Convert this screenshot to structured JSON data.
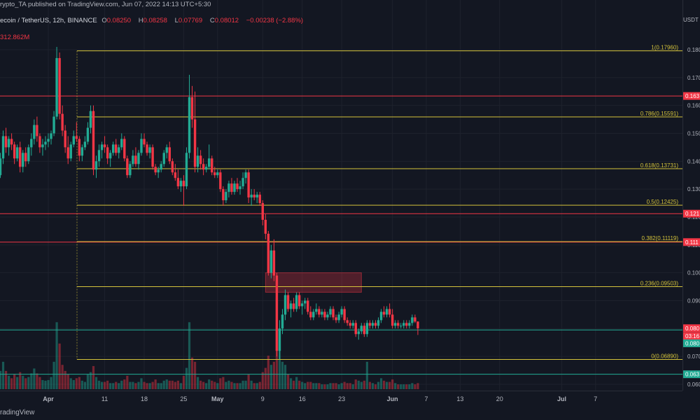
{
  "header": {
    "publish_info": "rypto_TA published on TradingView.com, Jun 07, 2022 14:13 UTC+5:30",
    "symbol": "ecoin / TetherUS, 12h, BINANCE",
    "ohlc": {
      "o_label": "O",
      "o": "0.08250",
      "h_label": "H",
      "h": "0.08258",
      "l_label": "L",
      "l": "0.07769",
      "c_label": "C",
      "c": "0.08012",
      "change": "−0.00238 (−2.88%)"
    },
    "volume": "312.862M",
    "currency": "USDT"
  },
  "footer": {
    "brand": "radingView"
  },
  "price_axis": {
    "ticks": [
      "0.180",
      "0.170",
      "0.160",
      "0.150",
      "0.140",
      "0.130",
      "0.120",
      "0.110",
      "0.100",
      "0.090",
      "0.080",
      "0.070",
      "0.060"
    ],
    "tags": [
      {
        "text": "0.163",
        "price": 0.1634,
        "color": "#f23645"
      },
      {
        "text": "0.121",
        "price": 0.1212,
        "color": "#f23645"
      },
      {
        "text": "0.111",
        "price": 0.111,
        "color": "#f23645"
      },
      {
        "text": "0.080",
        "price": 0.08012,
        "color": "#f23645"
      },
      {
        "text": "03:16",
        "price": 0.0773,
        "color": "#f23645"
      },
      {
        "text": "0.080",
        "price": 0.0747,
        "color": "#22ab94"
      },
      {
        "text": "0.063",
        "price": 0.0636,
        "color": "#22ab94"
      }
    ]
  },
  "time_axis": [
    {
      "label": "Apr",
      "day": 0,
      "bold": true
    },
    {
      "label": "11",
      "day": 10
    },
    {
      "label": "18",
      "day": 17
    },
    {
      "label": "25",
      "day": 24
    },
    {
      "label": "May",
      "day": 30,
      "bold": true
    },
    {
      "label": "9",
      "day": 38
    },
    {
      "label": "16",
      "day": 45
    },
    {
      "label": "23",
      "day": 52
    },
    {
      "label": "Jun",
      "day": 61,
      "bold": true
    },
    {
      "label": "7",
      "day": 67
    },
    {
      "label": "13",
      "day": 73
    },
    {
      "label": "20",
      "day": 80
    },
    {
      "label": "Jul",
      "day": 91,
      "bold": true
    },
    {
      "label": "7",
      "day": 97
    }
  ],
  "fibonacci": [
    {
      "label": "1(0.17960)",
      "price": 0.1796
    },
    {
      "label": "0.786(0.15591)",
      "price": 0.15591
    },
    {
      "label": "0.618(0.13731)",
      "price": 0.13731
    },
    {
      "label": "0.5(0.12425)",
      "price": 0.12425
    },
    {
      "label": "0.382(0.11119)",
      "price": 0.11119
    },
    {
      "label": "0.236(0.09503)",
      "price": 0.09503
    },
    {
      "label": "0(0.06890)",
      "price": 0.0689
    }
  ],
  "horizontal_lines": [
    {
      "price": 0.1634,
      "color": "#f23645"
    },
    {
      "price": 0.1212,
      "color": "#f23645"
    },
    {
      "price": 0.111,
      "color": "#f23645"
    },
    {
      "price": 0.0795,
      "color": "#22ab94"
    },
    {
      "price": 0.0636,
      "color": "#22ab94"
    }
  ],
  "supply_zone": {
    "price_top": 0.1,
    "price_bottom": 0.093,
    "start_day": 38.5,
    "end_day": 55.5,
    "color": "#f23645"
  },
  "colors": {
    "up": "#22ab94",
    "down": "#f23645",
    "fib": "#d4c33b",
    "grid": "#1e222d",
    "axis_text": "#b2b5be"
  },
  "chart_data": {
    "type": "candlestick",
    "interval": "12h",
    "price_axis_unit": "USDT",
    "ylim": [
      0.058,
      0.186
    ],
    "x_unit": "days since Apr 1, 2022",
    "candles": [
      [
        -10,
        0.137,
        0.14,
        0.133,
        0.136,
        20
      ],
      [
        -9.5,
        0.136,
        0.139,
        0.13,
        0.132,
        18
      ],
      [
        -9,
        0.132,
        0.137,
        0.129,
        0.135,
        22
      ],
      [
        -8.5,
        0.135,
        0.143,
        0.134,
        0.141,
        30
      ],
      [
        -8,
        0.141,
        0.151,
        0.139,
        0.149,
        45
      ],
      [
        -7.5,
        0.149,
        0.152,
        0.143,
        0.145,
        30
      ],
      [
        -7,
        0.145,
        0.149,
        0.142,
        0.148,
        22
      ],
      [
        -6.5,
        0.148,
        0.15,
        0.144,
        0.146,
        18
      ],
      [
        -6,
        0.146,
        0.147,
        0.139,
        0.141,
        25
      ],
      [
        -5.5,
        0.141,
        0.146,
        0.14,
        0.145,
        20
      ],
      [
        -5,
        0.145,
        0.147,
        0.136,
        0.138,
        28
      ],
      [
        -4.5,
        0.138,
        0.144,
        0.136,
        0.143,
        22
      ],
      [
        -4,
        0.143,
        0.145,
        0.138,
        0.14,
        18
      ],
      [
        -3.5,
        0.14,
        0.146,
        0.139,
        0.145,
        20
      ],
      [
        -3,
        0.145,
        0.15,
        0.142,
        0.148,
        26
      ],
      [
        -2.5,
        0.148,
        0.155,
        0.146,
        0.153,
        34
      ],
      [
        -2,
        0.153,
        0.156,
        0.147,
        0.149,
        26
      ],
      [
        -1.5,
        0.149,
        0.15,
        0.143,
        0.145,
        20
      ],
      [
        -1,
        0.145,
        0.148,
        0.142,
        0.146,
        15
      ],
      [
        -0.5,
        0.146,
        0.149,
        0.144,
        0.147,
        14
      ],
      [
        0,
        0.147,
        0.15,
        0.145,
        0.148,
        15
      ],
      [
        0.5,
        0.148,
        0.151,
        0.146,
        0.15,
        20
      ],
      [
        1,
        0.15,
        0.158,
        0.149,
        0.156,
        45
      ],
      [
        1.5,
        0.156,
        0.181,
        0.155,
        0.177,
        110
      ],
      [
        2,
        0.177,
        0.179,
        0.155,
        0.157,
        75
      ],
      [
        2.5,
        0.157,
        0.16,
        0.149,
        0.151,
        40
      ],
      [
        3,
        0.151,
        0.153,
        0.143,
        0.145,
        30
      ],
      [
        3.5,
        0.145,
        0.149,
        0.139,
        0.141,
        25
      ],
      [
        4,
        0.141,
        0.147,
        0.14,
        0.146,
        18
      ],
      [
        4.5,
        0.146,
        0.151,
        0.145,
        0.149,
        15
      ],
      [
        5,
        0.149,
        0.154,
        0.147,
        0.148,
        18
      ],
      [
        5.5,
        0.148,
        0.149,
        0.14,
        0.142,
        20
      ],
      [
        6,
        0.142,
        0.146,
        0.14,
        0.145,
        14
      ],
      [
        6.5,
        0.145,
        0.149,
        0.144,
        0.147,
        12
      ],
      [
        7,
        0.147,
        0.154,
        0.146,
        0.152,
        24
      ],
      [
        7.5,
        0.152,
        0.16,
        0.15,
        0.158,
        28
      ],
      [
        8,
        0.158,
        0.16,
        0.135,
        0.137,
        38
      ],
      [
        8.5,
        0.137,
        0.142,
        0.134,
        0.14,
        20
      ],
      [
        9,
        0.14,
        0.146,
        0.138,
        0.144,
        14
      ],
      [
        9.5,
        0.144,
        0.147,
        0.141,
        0.146,
        12
      ],
      [
        10,
        0.146,
        0.149,
        0.143,
        0.145,
        12
      ],
      [
        10.5,
        0.145,
        0.146,
        0.139,
        0.141,
        14
      ],
      [
        11,
        0.141,
        0.144,
        0.138,
        0.143,
        10
      ],
      [
        11.5,
        0.143,
        0.147,
        0.142,
        0.146,
        10
      ],
      [
        12,
        0.146,
        0.148,
        0.142,
        0.143,
        12
      ],
      [
        12.5,
        0.143,
        0.146,
        0.141,
        0.145,
        10
      ],
      [
        13,
        0.145,
        0.15,
        0.144,
        0.148,
        14
      ],
      [
        13.5,
        0.148,
        0.149,
        0.14,
        0.141,
        16
      ],
      [
        14,
        0.141,
        0.142,
        0.134,
        0.135,
        22
      ],
      [
        14.5,
        0.135,
        0.14,
        0.134,
        0.139,
        12
      ],
      [
        15,
        0.139,
        0.144,
        0.138,
        0.142,
        12
      ],
      [
        15.5,
        0.142,
        0.145,
        0.138,
        0.139,
        10
      ],
      [
        16,
        0.139,
        0.144,
        0.137,
        0.143,
        12
      ],
      [
        16.5,
        0.143,
        0.15,
        0.142,
        0.148,
        18
      ],
      [
        17,
        0.148,
        0.15,
        0.145,
        0.146,
        12
      ],
      [
        17.5,
        0.146,
        0.147,
        0.142,
        0.143,
        10
      ],
      [
        18,
        0.143,
        0.146,
        0.141,
        0.145,
        10
      ],
      [
        18.5,
        0.145,
        0.146,
        0.137,
        0.138,
        12
      ],
      [
        19,
        0.138,
        0.139,
        0.135,
        0.136,
        16
      ],
      [
        19.5,
        0.136,
        0.138,
        0.134,
        0.137,
        10
      ],
      [
        20,
        0.137,
        0.14,
        0.136,
        0.139,
        10
      ],
      [
        20.5,
        0.139,
        0.144,
        0.138,
        0.143,
        14
      ],
      [
        21,
        0.143,
        0.146,
        0.141,
        0.145,
        16
      ],
      [
        21.5,
        0.145,
        0.147,
        0.139,
        0.14,
        14
      ],
      [
        22,
        0.14,
        0.141,
        0.135,
        0.136,
        14
      ],
      [
        22.5,
        0.136,
        0.139,
        0.133,
        0.134,
        12
      ],
      [
        23,
        0.134,
        0.137,
        0.13,
        0.131,
        14
      ],
      [
        23.5,
        0.131,
        0.134,
        0.129,
        0.133,
        10
      ],
      [
        24,
        0.133,
        0.135,
        0.124,
        0.131,
        22
      ],
      [
        24.5,
        0.131,
        0.145,
        0.13,
        0.143,
        35
      ],
      [
        25,
        0.143,
        0.171,
        0.141,
        0.163,
        110
      ],
      [
        25.5,
        0.163,
        0.167,
        0.152,
        0.155,
        52
      ],
      [
        26,
        0.155,
        0.165,
        0.136,
        0.138,
        45
      ],
      [
        26.5,
        0.138,
        0.145,
        0.136,
        0.142,
        20
      ],
      [
        27,
        0.142,
        0.144,
        0.137,
        0.139,
        14
      ],
      [
        27.5,
        0.139,
        0.141,
        0.135,
        0.137,
        12
      ],
      [
        28,
        0.137,
        0.139,
        0.136,
        0.138,
        10
      ],
      [
        28.5,
        0.138,
        0.146,
        0.137,
        0.141,
        16
      ],
      [
        29,
        0.141,
        0.142,
        0.135,
        0.136,
        14
      ],
      [
        29.5,
        0.136,
        0.138,
        0.134,
        0.135,
        12
      ],
      [
        30,
        0.135,
        0.137,
        0.134,
        0.136,
        10
      ],
      [
        30.5,
        0.136,
        0.137,
        0.129,
        0.13,
        18
      ],
      [
        31,
        0.13,
        0.131,
        0.124,
        0.126,
        20
      ],
      [
        31.5,
        0.126,
        0.13,
        0.125,
        0.129,
        12
      ],
      [
        32,
        0.129,
        0.133,
        0.127,
        0.132,
        14
      ],
      [
        32.5,
        0.132,
        0.134,
        0.128,
        0.129,
        12
      ],
      [
        33,
        0.129,
        0.133,
        0.128,
        0.132,
        10
      ],
      [
        33.5,
        0.132,
        0.134,
        0.129,
        0.13,
        10
      ],
      [
        34,
        0.13,
        0.133,
        0.128,
        0.131,
        10
      ],
      [
        34.5,
        0.131,
        0.136,
        0.13,
        0.134,
        14
      ],
      [
        35,
        0.134,
        0.137,
        0.132,
        0.136,
        14
      ],
      [
        35.5,
        0.136,
        0.137,
        0.125,
        0.127,
        24
      ],
      [
        36,
        0.127,
        0.13,
        0.124,
        0.128,
        14
      ],
      [
        36.5,
        0.128,
        0.13,
        0.126,
        0.127,
        10
      ],
      [
        37,
        0.127,
        0.129,
        0.125,
        0.128,
        10
      ],
      [
        37.5,
        0.128,
        0.129,
        0.124,
        0.125,
        12
      ],
      [
        38,
        0.125,
        0.126,
        0.117,
        0.119,
        28
      ],
      [
        38.5,
        0.119,
        0.121,
        0.112,
        0.114,
        35
      ],
      [
        39,
        0.114,
        0.115,
        0.099,
        0.1,
        55
      ],
      [
        39.5,
        0.1,
        0.11,
        0.098,
        0.108,
        40
      ],
      [
        40,
        0.108,
        0.112,
        0.097,
        0.099,
        45
      ],
      [
        40.5,
        0.099,
        0.1,
        0.07,
        0.072,
        150
      ],
      [
        41,
        0.072,
        0.083,
        0.069,
        0.08,
        80
      ],
      [
        41.5,
        0.08,
        0.087,
        0.078,
        0.085,
        45
      ],
      [
        42,
        0.085,
        0.094,
        0.083,
        0.092,
        40
      ],
      [
        42.5,
        0.092,
        0.093,
        0.086,
        0.087,
        25
      ],
      [
        43,
        0.087,
        0.09,
        0.084,
        0.089,
        18
      ],
      [
        43.5,
        0.089,
        0.091,
        0.086,
        0.087,
        14
      ],
      [
        44,
        0.087,
        0.093,
        0.086,
        0.092,
        20
      ],
      [
        44.5,
        0.092,
        0.093,
        0.087,
        0.088,
        14
      ],
      [
        45,
        0.088,
        0.09,
        0.085,
        0.089,
        12
      ],
      [
        45.5,
        0.089,
        0.091,
        0.087,
        0.09,
        10
      ],
      [
        46,
        0.09,
        0.091,
        0.085,
        0.086,
        12
      ],
      [
        46.5,
        0.086,
        0.088,
        0.083,
        0.084,
        12
      ],
      [
        47,
        0.084,
        0.087,
        0.083,
        0.086,
        10
      ],
      [
        47.5,
        0.086,
        0.089,
        0.085,
        0.087,
        10
      ],
      [
        48,
        0.087,
        0.088,
        0.084,
        0.085,
        10
      ],
      [
        48.5,
        0.085,
        0.087,
        0.084,
        0.086,
        8
      ],
      [
        49,
        0.086,
        0.087,
        0.083,
        0.084,
        8
      ],
      [
        49.5,
        0.084,
        0.086,
        0.083,
        0.085,
        8
      ],
      [
        50,
        0.085,
        0.088,
        0.084,
        0.087,
        10
      ],
      [
        50.5,
        0.087,
        0.088,
        0.083,
        0.084,
        10
      ],
      [
        51,
        0.084,
        0.085,
        0.082,
        0.083,
        10
      ],
      [
        51.5,
        0.083,
        0.086,
        0.082,
        0.085,
        8
      ],
      [
        52,
        0.085,
        0.088,
        0.084,
        0.087,
        10
      ],
      [
        52.5,
        0.087,
        0.088,
        0.082,
        0.083,
        12
      ],
      [
        53,
        0.083,
        0.084,
        0.081,
        0.082,
        10
      ],
      [
        53.5,
        0.082,
        0.083,
        0.08,
        0.081,
        10
      ],
      [
        54,
        0.081,
        0.083,
        0.08,
        0.082,
        8
      ],
      [
        54.5,
        0.082,
        0.083,
        0.077,
        0.078,
        16
      ],
      [
        55,
        0.078,
        0.08,
        0.076,
        0.079,
        14
      ],
      [
        55.5,
        0.079,
        0.082,
        0.078,
        0.081,
        12
      ],
      [
        56,
        0.081,
        0.082,
        0.077,
        0.078,
        14
      ],
      [
        56.5,
        0.078,
        0.083,
        0.077,
        0.082,
        45
      ],
      [
        57,
        0.082,
        0.083,
        0.08,
        0.081,
        12
      ],
      [
        57.5,
        0.081,
        0.083,
        0.08,
        0.082,
        10
      ],
      [
        58,
        0.082,
        0.083,
        0.08,
        0.081,
        8
      ],
      [
        58.5,
        0.081,
        0.084,
        0.08,
        0.083,
        12
      ],
      [
        59,
        0.083,
        0.087,
        0.082,
        0.086,
        18
      ],
      [
        59.5,
        0.086,
        0.088,
        0.084,
        0.085,
        14
      ],
      [
        60,
        0.085,
        0.088,
        0.084,
        0.087,
        12
      ],
      [
        60.5,
        0.087,
        0.089,
        0.084,
        0.085,
        12
      ],
      [
        61,
        0.085,
        0.087,
        0.08,
        0.081,
        16
      ],
      [
        61.5,
        0.081,
        0.083,
        0.08,
        0.082,
        10
      ],
      [
        62,
        0.082,
        0.083,
        0.08,
        0.081,
        8
      ],
      [
        62.5,
        0.081,
        0.082,
        0.08,
        0.081,
        8
      ],
      [
        63,
        0.081,
        0.083,
        0.08,
        0.082,
        8
      ],
      [
        63.5,
        0.082,
        0.083,
        0.08,
        0.081,
        8
      ],
      [
        64,
        0.081,
        0.083,
        0.08,
        0.082,
        8
      ],
      [
        64.5,
        0.082,
        0.085,
        0.081,
        0.084,
        10
      ],
      [
        65,
        0.084,
        0.085,
        0.082,
        0.0825,
        8
      ],
      [
        65.5,
        0.0825,
        0.0826,
        0.0777,
        0.0801,
        10
      ]
    ]
  }
}
